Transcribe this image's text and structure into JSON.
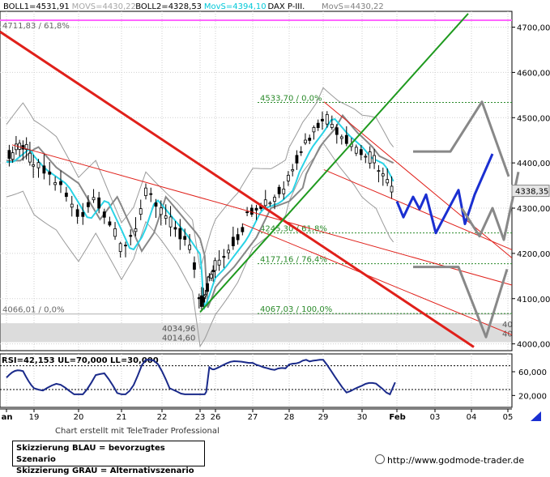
{
  "header": {
    "items": [
      {
        "text": "BOLL1=4531,91",
        "color": "#000000"
      },
      {
        "text": "MOVS=4430,22",
        "color": "#a6a6a6"
      },
      {
        "text": "BOLL2=4328,53",
        "color": "#000000"
      },
      {
        "text": "MovS=4394,10",
        "color": "#00c8d8"
      },
      {
        "text": "DAX P-III.",
        "color": "#000000"
      },
      {
        "text": "MovS=4430,22",
        "color": "#808080"
      }
    ]
  },
  "chart_data": {
    "type": "candlestick",
    "title": "DAX P-III.",
    "x_labels": [
      "an",
      "19",
      "20",
      "21",
      "22",
      "23",
      "26",
      "27",
      "28",
      "29",
      "30",
      "Feb",
      "03",
      "04",
      "05"
    ],
    "y_ticks": [
      "4700,00",
      "4600,00",
      "4500,00",
      "4400,00",
      "4300,00",
      "4200,00",
      "4100,00",
      "4000,00"
    ],
    "y_tick_values": [
      4700,
      4600,
      4500,
      4400,
      4300,
      4200,
      4100,
      4000
    ],
    "ylim": [
      3985,
      4735
    ],
    "last_price_label": "4338,35",
    "last_price": 4338.35,
    "left_labels": [
      {
        "text": "4711,83 / 61,8%",
        "value": 4711.83
      },
      {
        "text": "4066,01 / 0,0%",
        "value": 4066.01
      },
      {
        "text": "4034,96",
        "value": 4034.96
      },
      {
        "text": "4014,60",
        "value": 4014.6
      }
    ],
    "fibo_labels": [
      {
        "text": "4533,70 / 0,0%",
        "value": 4533.7
      },
      {
        "text": "4245,30 / 61,8%",
        "value": 4245.3
      },
      {
        "text": "4177,16 / 76,4%",
        "value": 4177.16
      },
      {
        "text": "4067,03 / 100,0%",
        "value": 4067.03
      }
    ],
    "right_small_labels": [
      "40",
      "40"
    ],
    "rsi": {
      "header": "RSI=42,153 UL=70,000 LL=30,000",
      "ticks": [
        "60,000",
        "20,000"
      ],
      "tick_values": [
        60,
        20
      ],
      "ul": 70,
      "ll": 30,
      "last": 42.153
    },
    "series": [
      {
        "name": "BOLL1",
        "value": 4531.91
      },
      {
        "name": "MOVS",
        "value": 4430.22
      },
      {
        "name": "BOLL2",
        "value": 4328.53
      },
      {
        "name": "MovS",
        "value": 4394.1
      }
    ]
  },
  "credit": "Chart erstellt mit TeleTrader Professional",
  "legend": {
    "line1": "Skizzierung BLAU = bevorzugtes Szenario",
    "line2": "Skizzierung GRAU = Alternativszenario"
  },
  "source": "http://www.godmode-trader.de",
  "colors": {
    "grid": "#cfcfcf",
    "candle": "#000000",
    "ma_cyan": "#29d3e6",
    "ma_gray": "#888888",
    "boll": "#9a9a9a",
    "trend_red": "#e0201a",
    "trend_green": "#1f9a1f",
    "fibo_green": "#2a8a2a",
    "scenario_blue": "#1a2fd1",
    "scenario_gray": "#888888",
    "magenta": "#ff66ff"
  }
}
